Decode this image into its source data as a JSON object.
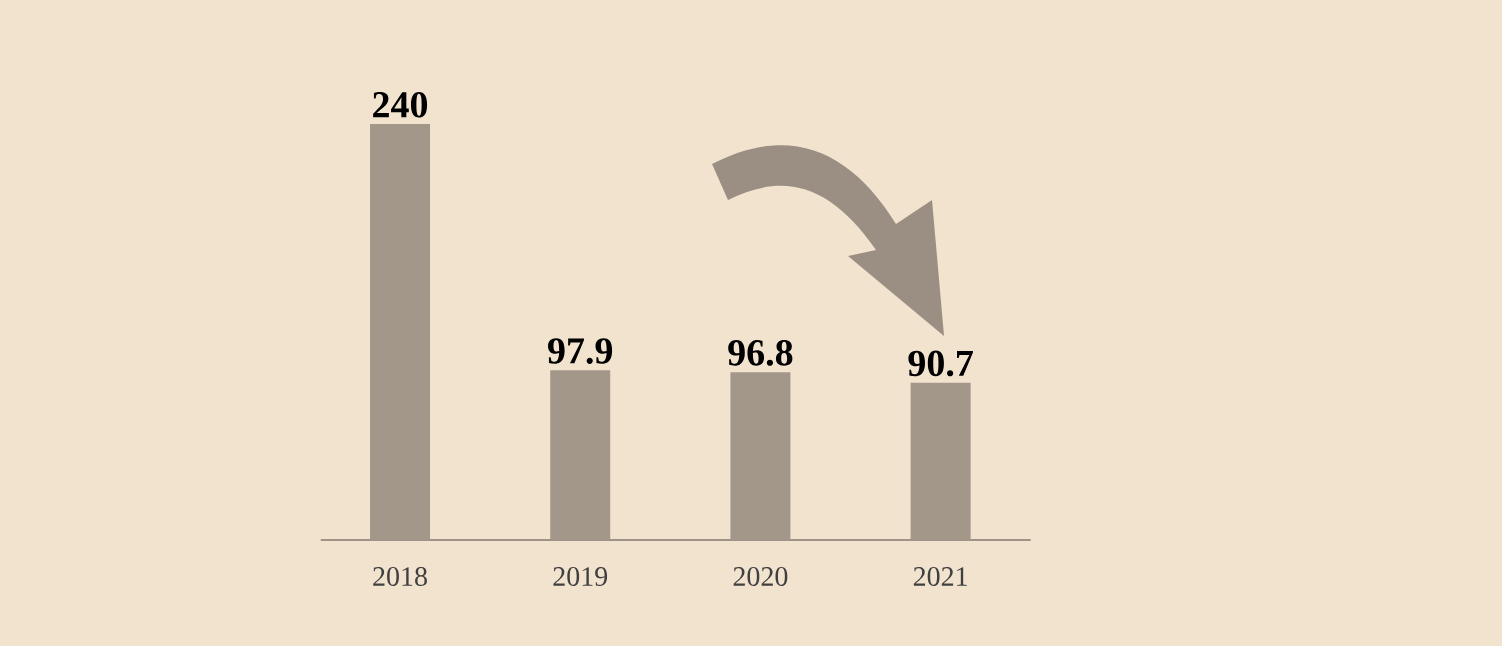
{
  "chart_data": {
    "type": "bar",
    "categories": [
      "2018",
      "2019",
      "2020",
      "2021"
    ],
    "values": [
      240,
      97.9,
      96.8,
      90.7
    ],
    "color": "#a29789",
    "data_labels": true
  }
}
